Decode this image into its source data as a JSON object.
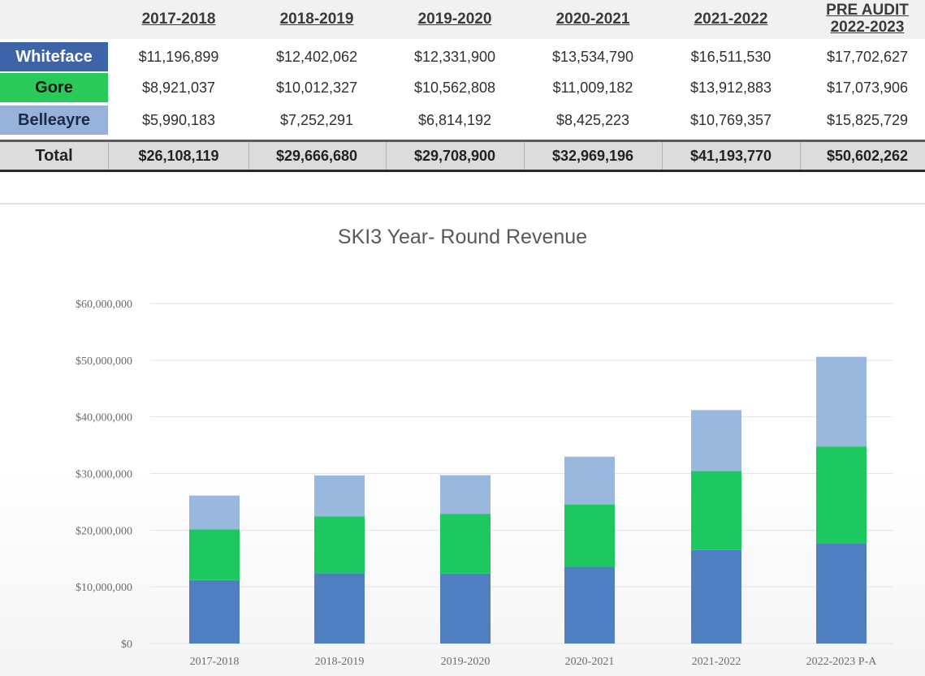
{
  "table": {
    "headers": [
      "2017-2018",
      "2018-2019",
      "2019-2020",
      "2020-2021",
      "2021-2022",
      [
        "PRE AUDIT",
        "2022-2023"
      ]
    ],
    "rows": [
      {
        "label": "Whiteface",
        "values": [
          "$11,196,899",
          "$12,402,062",
          "$12,331,900",
          "$13,534,790",
          "$16,511,530",
          "$17,702,627"
        ]
      },
      {
        "label": "Gore",
        "values": [
          "$8,921,037",
          "$10,012,327",
          "$10,562,808",
          "$11,009,182",
          "$13,912,883",
          "$17,073,906"
        ]
      },
      {
        "label": "Belleayre",
        "values": [
          "$5,990,183",
          "$7,252,291",
          "$6,814,192",
          "$8,425,223",
          "$10,769,357",
          "$15,825,729"
        ]
      }
    ],
    "total": {
      "label": "Total",
      "values": [
        "$26,108,119",
        "$29,666,680",
        "$29,708,900",
        "$32,969,196",
        "$41,193,770",
        "$50,602,262"
      ]
    }
  },
  "colors": {
    "whiteface": "#4f7fc0",
    "gore": "#1ec860",
    "belleayre": "#9ab8de",
    "whiteface_label_bg": "#3d64a8",
    "gore_label_bg": "#29c95a",
    "belleayre_label_bg": "#96b2d9"
  },
  "chart_data": {
    "type": "bar",
    "stacked": true,
    "title": "SKI3 Year- Round Revenue",
    "categories": [
      "2017-2018",
      "2018-2019",
      "2019-2020",
      "2020-2021",
      "2021-2022",
      "2022-2023 P-A"
    ],
    "series": [
      {
        "name": "Whiteface",
        "values": [
          11196899,
          12402062,
          12331900,
          13534790,
          16511530,
          17702627
        ]
      },
      {
        "name": "Gore",
        "values": [
          8921037,
          10012327,
          10562808,
          11009182,
          13912883,
          17073906
        ]
      },
      {
        "name": "Belleayre",
        "values": [
          5990183,
          7252291,
          6814192,
          8425223,
          10769357,
          15825729
        ]
      }
    ],
    "yticks": [
      "$0",
      "$10,000,000",
      "$20,000,000",
      "$30,000,000",
      "$40,000,000",
      "$50,000,000",
      "$60,000,000"
    ],
    "ylim": [
      0,
      60000000
    ],
    "grid": true
  }
}
